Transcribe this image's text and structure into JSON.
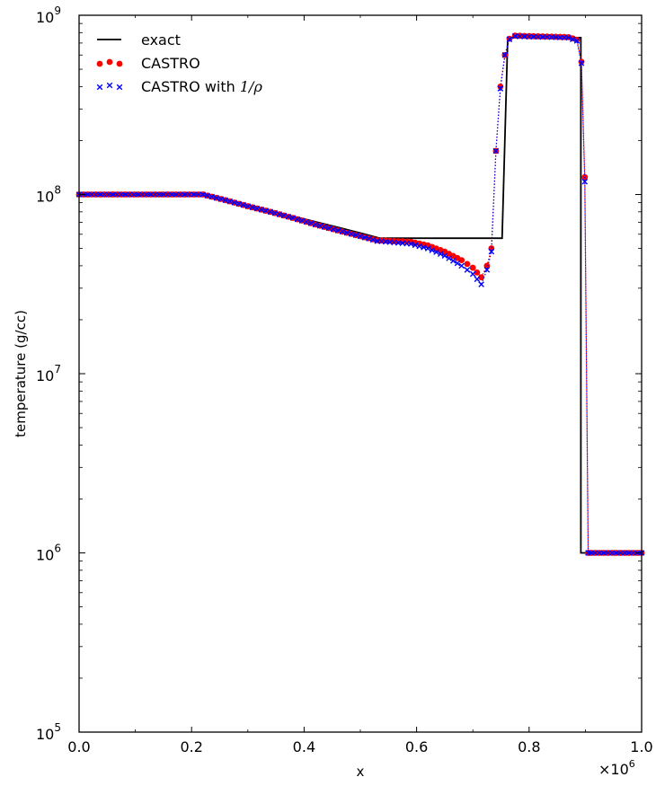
{
  "chart_data": {
    "type": "line",
    "xlabel": "x",
    "ylabel": "temperature (g/cc)",
    "x_multiplier_label": "×10",
    "x_multiplier_exponent": "6",
    "xlim": [
      0.0,
      1.0
    ],
    "ylim": [
      100000,
      1000000000
    ],
    "yscale": "log",
    "grid": false,
    "legend_position": "top-left",
    "x_ticks": [
      "0.0",
      "0.2",
      "0.4",
      "0.6",
      "0.8",
      "1.0"
    ],
    "y_ticks": [
      {
        "base": "10",
        "exp": "5"
      },
      {
        "base": "10",
        "exp": "6"
      },
      {
        "base": "10",
        "exp": "7"
      },
      {
        "base": "10",
        "exp": "8"
      },
      {
        "base": "10",
        "exp": "9"
      }
    ],
    "legend": [
      {
        "label": "exact",
        "math": "",
        "marker": "line",
        "color": "#000000"
      },
      {
        "label": "CASTRO",
        "math": "",
        "marker": "circle",
        "color": "#ff0000"
      },
      {
        "label": "CASTRO with ",
        "math": "1/ρ",
        "marker": "x",
        "color": "#0000ff"
      }
    ],
    "series": [
      {
        "name": "exact",
        "style": "line",
        "color": "#000000",
        "x": [
          0.0,
          0.22,
          0.3,
          0.4,
          0.5,
          0.535,
          0.752,
          0.752,
          0.762,
          0.762,
          0.892,
          0.892,
          1.0
        ],
        "y": [
          100000000,
          100000000,
          86000000,
          73000000,
          61000000,
          57000000,
          57000000,
          57000000,
          750000000,
          750000000,
          750000000,
          1000000,
          1000000
        ]
      },
      {
        "name": "CASTRO",
        "style": "marker",
        "marker": "circle",
        "color": "#ff0000",
        "x": [
          0.0,
          0.06,
          0.12,
          0.18,
          0.22,
          0.26,
          0.3,
          0.34,
          0.38,
          0.42,
          0.46,
          0.5,
          0.53,
          0.56,
          0.59,
          0.62,
          0.65,
          0.68,
          0.7,
          0.715,
          0.725,
          0.733,
          0.741,
          0.749,
          0.757,
          0.765,
          0.775,
          0.8,
          0.84,
          0.87,
          0.885,
          0.893,
          0.899,
          0.905,
          0.91,
          0.94,
          0.97,
          1.0
        ],
        "y": [
          100000000,
          100000000,
          100000000,
          100000000,
          100000000,
          93000000,
          86000000,
          80000000,
          74000000,
          68000000,
          63000000,
          58500000,
          55500000,
          55000000,
          54500000,
          52000000,
          48000000,
          43000000,
          39000000,
          34500000,
          40000000,
          50000000,
          175000000,
          400000000,
          600000000,
          740000000,
          770000000,
          765000000,
          760000000,
          755000000,
          730000000,
          550000000,
          125000000,
          1000000,
          1000000,
          1000000,
          1000000,
          1000000
        ]
      },
      {
        "name": "CASTRO with 1/ρ",
        "style": "marker",
        "marker": "x",
        "color": "#0000ff",
        "x": [
          0.0,
          0.06,
          0.12,
          0.18,
          0.22,
          0.26,
          0.3,
          0.34,
          0.38,
          0.42,
          0.46,
          0.5,
          0.53,
          0.56,
          0.59,
          0.62,
          0.65,
          0.68,
          0.7,
          0.715,
          0.725,
          0.733,
          0.741,
          0.749,
          0.757,
          0.765,
          0.775,
          0.8,
          0.84,
          0.87,
          0.885,
          0.893,
          0.899,
          0.905,
          0.91,
          0.94,
          0.97,
          1.0
        ],
        "y": [
          100000000,
          100000000,
          100000000,
          100000000,
          100000000,
          93000000,
          86000000,
          80000000,
          74000000,
          68000000,
          63000000,
          58500000,
          55000000,
          54000000,
          53000000,
          50000000,
          45500000,
          40000000,
          36000000,
          31500000,
          38000000,
          48000000,
          175000000,
          390000000,
          600000000,
          735000000,
          765000000,
          760000000,
          755000000,
          750000000,
          720000000,
          540000000,
          118000000,
          1000000,
          1000000,
          1000000,
          1000000,
          1000000
        ]
      }
    ]
  }
}
